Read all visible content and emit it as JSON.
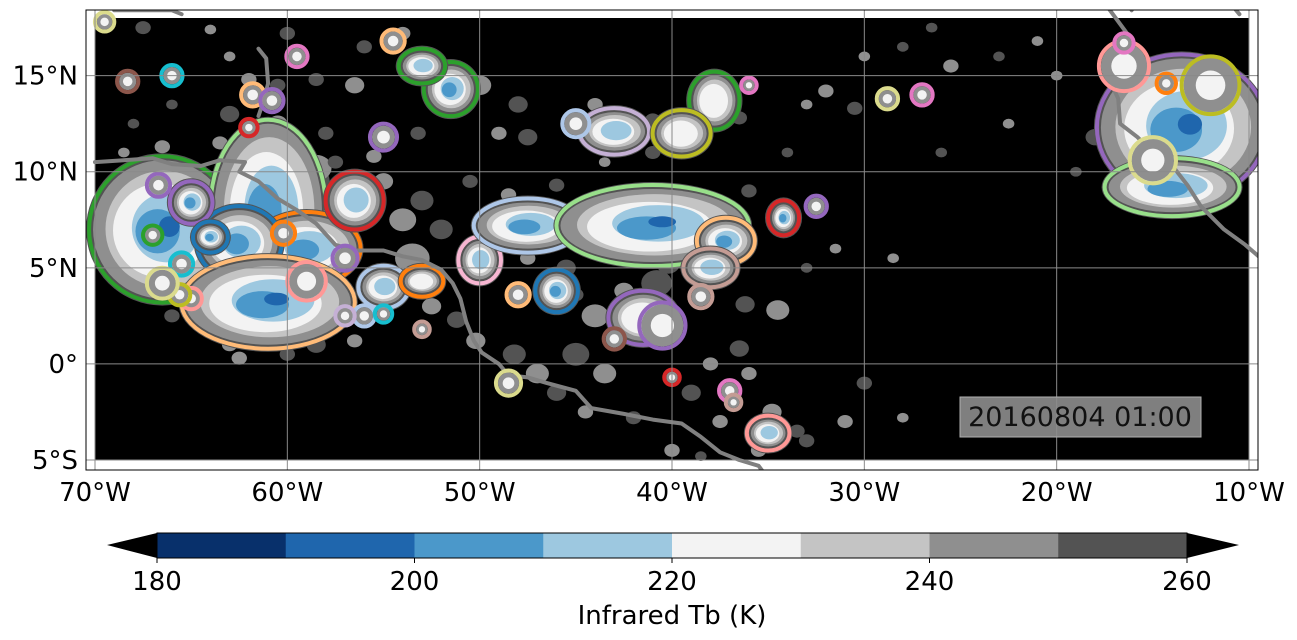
{
  "map": {
    "extent": {
      "lon_min": -70,
      "lon_max": -10,
      "lat_min": -5,
      "lat_max": 18
    },
    "x_ticks": [
      {
        "value": -70,
        "label": "70°W"
      },
      {
        "value": -60,
        "label": "60°W"
      },
      {
        "value": -50,
        "label": "50°W"
      },
      {
        "value": -40,
        "label": "40°W"
      },
      {
        "value": -30,
        "label": "30°W"
      },
      {
        "value": -20,
        "label": "20°W"
      },
      {
        "value": -10,
        "label": "10°W"
      }
    ],
    "y_ticks": [
      {
        "value": 15,
        "label": "15°N"
      },
      {
        "value": 10,
        "label": "10°N"
      },
      {
        "value": 5,
        "label": "5°N"
      },
      {
        "value": 0,
        "label": "0°"
      },
      {
        "value": -5,
        "label": "5°S"
      }
    ],
    "timestamp": "20160804 01:00",
    "background_color": "#000000",
    "coastline_color": "#808080",
    "grid": true
  },
  "colorbar": {
    "label": "Infrared Tb (K)",
    "ticks": [
      180,
      200,
      220,
      240,
      260
    ],
    "bins": [
      {
        "from": 180,
        "to": 190,
        "color": "#08306b"
      },
      {
        "from": 190,
        "to": 200,
        "color": "#1f66ad"
      },
      {
        "from": 200,
        "to": 210,
        "color": "#4b98ca"
      },
      {
        "from": 210,
        "to": 220,
        "color": "#9dc8e0"
      },
      {
        "from": 220,
        "to": 230,
        "color": "#f3f3f3"
      },
      {
        "from": 230,
        "to": 240,
        "color": "#c4c4c4"
      },
      {
        "from": 240,
        "to": 250,
        "color": "#8f8f8f"
      },
      {
        "from": 250,
        "to": 260,
        "color": "#535353"
      }
    ],
    "under_color": "#000000",
    "over_color": "#000000"
  },
  "tb_palette": {
    "t260": "#535353",
    "t240": "#8f8f8f",
    "t230": "#c4c4c4",
    "t220": "#f3f3f3",
    "t210": "#9dc8e0",
    "t200": "#4b98ca",
    "t190": "#1f66ad"
  },
  "track_colors": {
    "green": "#2ca02c",
    "lightgreen": "#98df8a",
    "blue": "#1f77b4",
    "lightblue": "#aec7e8",
    "orange": "#ff7f0e",
    "peach": "#ffbb78",
    "red": "#d62728",
    "salmon": "#ff9896",
    "purple": "#9467bd",
    "lavender": "#c5b0d5",
    "brown": "#8c564b",
    "rosybrown": "#c49c94",
    "pink": "#e377c2",
    "lightpink": "#f7b6d2",
    "olive": "#bcbd22",
    "khaki": "#dbdb8d",
    "cyan": "#17becf"
  },
  "systems": [
    {
      "lon": -66.5,
      "lat": 7.0,
      "rx": 3.6,
      "ry": 3.6,
      "core": 3,
      "outline": "green"
    },
    {
      "lon": -61.0,
      "lat": 8.0,
      "rx": 2.8,
      "ry": 4.5,
      "core": 2,
      "outline": "lightgreen"
    },
    {
      "lon": -59.0,
      "lat": 6.0,
      "rx": 2.6,
      "ry": 1.7,
      "core": 2,
      "outline": "orange"
    },
    {
      "lon": -62.5,
      "lat": 6.3,
      "rx": 2.0,
      "ry": 1.7,
      "core": 2,
      "outline": "blue"
    },
    {
      "lon": -61.0,
      "lat": 3.2,
      "rx": 4.3,
      "ry": 2.2,
      "core": 3,
      "outline": "peach"
    },
    {
      "lon": -55.0,
      "lat": 4.0,
      "rx": 1.1,
      "ry": 0.9,
      "core": 1,
      "outline": "lightblue"
    },
    {
      "lon": -53.0,
      "lat": 4.3,
      "rx": 0.9,
      "ry": 0.6,
      "core": 0,
      "outline": "orange"
    },
    {
      "lon": -56.5,
      "lat": 8.5,
      "rx": 1.3,
      "ry": 1.3,
      "core": 1,
      "outline": "red"
    },
    {
      "lon": -50.0,
      "lat": 5.4,
      "rx": 0.9,
      "ry": 1.0,
      "core": 1,
      "outline": "lightpink"
    },
    {
      "lon": -47.5,
      "lat": 7.2,
      "rx": 2.6,
      "ry": 1.2,
      "core": 2,
      "outline": "lightblue"
    },
    {
      "lon": -41.0,
      "lat": 7.2,
      "rx": 4.8,
      "ry": 1.9,
      "core": 3,
      "outline": "lightgreen"
    },
    {
      "lon": -37.2,
      "lat": 6.4,
      "rx": 1.3,
      "ry": 1.0,
      "core": 2,
      "outline": "peach"
    },
    {
      "lon": -41.5,
      "lat": 2.4,
      "rx": 1.6,
      "ry": 1.2,
      "core": 0,
      "outline": "purple"
    },
    {
      "lon": -46.0,
      "lat": 3.8,
      "rx": 0.9,
      "ry": 0.9,
      "core": 2,
      "outline": "blue"
    },
    {
      "lon": -51.5,
      "lat": 14.3,
      "rx": 1.2,
      "ry": 1.2,
      "core": 2,
      "outline": "green"
    },
    {
      "lon": -53.0,
      "lat": 15.5,
      "rx": 1.0,
      "ry": 0.7,
      "core": 1,
      "outline": "green"
    },
    {
      "lon": -37.8,
      "lat": 13.7,
      "rx": 1.1,
      "ry": 1.3,
      "core": 0,
      "outline": "green"
    },
    {
      "lon": -43.0,
      "lat": 12.1,
      "rx": 1.6,
      "ry": 1.0,
      "core": 1,
      "outline": "lavender"
    },
    {
      "lon": -39.5,
      "lat": 12.0,
      "rx": 1.3,
      "ry": 1.0,
      "core": 0,
      "outline": "olive"
    },
    {
      "lon": -13.5,
      "lat": 12.3,
      "rx": 4.2,
      "ry": 3.6,
      "core": 3,
      "outline": "purple"
    },
    {
      "lon": -14.0,
      "lat": 9.2,
      "rx": 3.3,
      "ry": 1.3,
      "core": 2,
      "outline": "lightgreen"
    },
    {
      "lon": -35.0,
      "lat": -3.6,
      "rx": 0.9,
      "ry": 0.7,
      "core": 1,
      "outline": "salmon"
    },
    {
      "lon": -65.0,
      "lat": 8.4,
      "rx": 0.9,
      "ry": 0.9,
      "core": 2,
      "outline": "purple"
    },
    {
      "lon": -64.0,
      "lat": 6.6,
      "rx": 0.7,
      "ry": 0.6,
      "core": 2,
      "outline": "blue"
    },
    {
      "lon": -34.2,
      "lat": 7.6,
      "rx": 0.6,
      "ry": 0.7,
      "core": 2,
      "outline": "red"
    },
    {
      "lon": -38.0,
      "lat": 5.0,
      "rx": 1.2,
      "ry": 0.8,
      "core": 1,
      "outline": "rosybrown"
    }
  ],
  "blobs": [
    {
      "lon": -61.8,
      "lat": 14.0,
      "r": 0.5,
      "color": "peach"
    },
    {
      "lon": -60.8,
      "lat": 13.7,
      "r": 0.5,
      "color": "purple"
    },
    {
      "lon": -62.0,
      "lat": 12.3,
      "r": 0.35,
      "color": "red"
    },
    {
      "lon": -59.5,
      "lat": 16.0,
      "r": 0.45,
      "color": "pink"
    },
    {
      "lon": -66.0,
      "lat": 15.0,
      "r": 0.45,
      "color": "cyan"
    },
    {
      "lon": -68.3,
      "lat": 14.7,
      "r": 0.45,
      "color": "brown"
    },
    {
      "lon": -54.5,
      "lat": 16.8,
      "r": 0.5,
      "color": "peach"
    },
    {
      "lon": -55.0,
      "lat": 11.8,
      "r": 0.6,
      "color": "purple"
    },
    {
      "lon": -45.0,
      "lat": 12.5,
      "r": 0.6,
      "color": "lightblue"
    },
    {
      "lon": -36.0,
      "lat": 14.5,
      "r": 0.3,
      "color": "pink"
    },
    {
      "lon": -27.0,
      "lat": 14.0,
      "r": 0.45,
      "color": "pink"
    },
    {
      "lon": -28.8,
      "lat": 13.8,
      "r": 0.45,
      "color": "khaki"
    },
    {
      "lon": -32.5,
      "lat": 8.2,
      "r": 0.45,
      "color": "purple"
    },
    {
      "lon": -57.0,
      "lat": 5.5,
      "r": 0.55,
      "color": "purple"
    },
    {
      "lon": -56.0,
      "lat": 2.5,
      "r": 0.45,
      "color": "lightblue"
    },
    {
      "lon": -55.0,
      "lat": 2.6,
      "r": 0.35,
      "color": "cyan"
    },
    {
      "lon": -48.0,
      "lat": 3.6,
      "r": 0.5,
      "color": "peach"
    },
    {
      "lon": -43.0,
      "lat": 1.3,
      "r": 0.45,
      "color": "brown"
    },
    {
      "lon": -40.0,
      "lat": -0.7,
      "r": 0.3,
      "color": "red"
    },
    {
      "lon": -37.0,
      "lat": -1.4,
      "r": 0.45,
      "color": "pink"
    },
    {
      "lon": -36.8,
      "lat": -2.0,
      "r": 0.3,
      "color": "rosybrown"
    },
    {
      "lon": -48.5,
      "lat": -1.0,
      "r": 0.55,
      "color": "khaki"
    },
    {
      "lon": -65.0,
      "lat": 3.4,
      "r": 0.45,
      "color": "salmon"
    },
    {
      "lon": -65.6,
      "lat": 3.6,
      "r": 0.45,
      "color": "olive"
    },
    {
      "lon": -65.5,
      "lat": 5.2,
      "r": 0.5,
      "color": "cyan"
    },
    {
      "lon": -67.0,
      "lat": 6.7,
      "r": 0.4,
      "color": "green"
    },
    {
      "lon": -66.7,
      "lat": 9.3,
      "r": 0.5,
      "color": "purple"
    },
    {
      "lon": -60.2,
      "lat": 6.8,
      "r": 0.5,
      "color": "orange"
    },
    {
      "lon": -59.0,
      "lat": 4.3,
      "r": 0.9,
      "color": "salmon"
    },
    {
      "lon": -57.0,
      "lat": 2.5,
      "r": 0.4,
      "color": "lavender"
    },
    {
      "lon": -53.0,
      "lat": 1.8,
      "r": 0.3,
      "color": "rosybrown"
    },
    {
      "lon": -38.5,
      "lat": 3.5,
      "r": 0.5,
      "color": "rosybrown"
    },
    {
      "lon": -40.5,
      "lat": 2.0,
      "r": 1.1,
      "color": "purple"
    },
    {
      "lon": -14.3,
      "lat": 14.6,
      "r": 0.4,
      "color": "orange"
    },
    {
      "lon": -16.5,
      "lat": 15.5,
      "r": 1.2,
      "color": "salmon"
    },
    {
      "lon": -12.0,
      "lat": 14.5,
      "r": 1.4,
      "color": "olive"
    },
    {
      "lon": -15.0,
      "lat": 10.6,
      "r": 1.1,
      "color": "khaki"
    },
    {
      "lon": -16.5,
      "lat": 16.7,
      "r": 0.4,
      "color": "pink"
    },
    {
      "lon": -66.5,
      "lat": 4.2,
      "r": 0.7,
      "color": "khaki"
    },
    {
      "lon": -69.5,
      "lat": 17.8,
      "r": 0.4,
      "color": "khaki"
    }
  ],
  "coastlines": [
    {
      "id": "south-america",
      "points": [
        [
          -70,
          10.5
        ],
        [
          -68.5,
          10.6
        ],
        [
          -67,
          10.7
        ],
        [
          -66,
          10.4
        ],
        [
          -64.5,
          10.3
        ],
        [
          -63.5,
          10.6
        ],
        [
          -62.2,
          10.5
        ],
        [
          -62.5,
          10.0
        ],
        [
          -61.5,
          9.5
        ],
        [
          -60.5,
          8.6
        ],
        [
          -59.5,
          8.0
        ],
        [
          -58.5,
          7.3
        ],
        [
          -57.5,
          6.2
        ],
        [
          -56.5,
          5.9
        ],
        [
          -55,
          5.9
        ],
        [
          -54,
          5.6
        ],
        [
          -53,
          5.4
        ],
        [
          -52,
          4.9
        ],
        [
          -51.4,
          4.2
        ],
        [
          -51,
          3.4
        ],
        [
          -50.7,
          2.2
        ],
        [
          -50.3,
          1.2
        ],
        [
          -49.9,
          0.6
        ],
        [
          -49,
          0
        ],
        [
          -48.5,
          -0.6
        ],
        [
          -47.5,
          -0.7
        ],
        [
          -46.5,
          -1.0
        ],
        [
          -45,
          -1.4
        ],
        [
          -44.2,
          -2.3
        ],
        [
          -42.5,
          -2.6
        ],
        [
          -41,
          -2.9
        ],
        [
          -39.5,
          -3.1
        ],
        [
          -38.5,
          -3.8
        ],
        [
          -37.5,
          -4.6
        ],
        [
          -36.5,
          -5.0
        ],
        [
          -35.5,
          -5.3
        ],
        [
          -35.2,
          -5.7
        ]
      ]
    },
    {
      "id": "africa",
      "points": [
        [
          -17.3,
          18.5
        ],
        [
          -16.2,
          17.0
        ],
        [
          -16.9,
          16.0
        ],
        [
          -17.3,
          14.9
        ],
        [
          -16.8,
          13.8
        ],
        [
          -16.7,
          12.5
        ],
        [
          -15.8,
          11.8
        ],
        [
          -15.0,
          11.0
        ],
        [
          -13.9,
          10.2
        ],
        [
          -13.2,
          9.3
        ],
        [
          -12.5,
          8.2
        ],
        [
          -11.3,
          7.0
        ],
        [
          -10.2,
          6.2
        ],
        [
          -9.5,
          5.6
        ]
      ]
    },
    {
      "id": "caribbean",
      "points": [
        [
          -61.5,
          16.4
        ],
        [
          -61.1,
          15.9
        ],
        [
          -61.0,
          14.6
        ],
        [
          -61.2,
          13.8
        ],
        [
          -61.5,
          12.9
        ]
      ]
    },
    {
      "id": "islands-top",
      "points": [
        [
          -69,
          18.4
        ],
        [
          -66,
          18.4
        ],
        [
          -65.5,
          18.2
        ]
      ]
    },
    {
      "id": "africa-north",
      "points": [
        [
          -16.1,
          18.4
        ],
        [
          -15.9,
          18.8
        ]
      ]
    },
    {
      "id": "island-east",
      "points": [
        [
          -10.5,
          18.2
        ],
        [
          -11,
          18.8
        ]
      ]
    }
  ],
  "clouds": [
    [
      -59,
      9.5,
      1.2
    ],
    [
      -58.5,
      10.2,
      0.8
    ],
    [
      -58,
      8.7,
      0.9
    ],
    [
      -54,
      7.5,
      0.7
    ],
    [
      -53,
      8.5,
      0.6
    ],
    [
      -55,
      9.5,
      0.5
    ],
    [
      -57.5,
      10.5,
      0.4
    ],
    [
      -53.5,
      5.5,
      0.9
    ],
    [
      -52,
      7,
      0.6
    ],
    [
      -52.5,
      3,
      0.5
    ],
    [
      -51.2,
      2.3,
      0.5
    ],
    [
      -50.2,
      1.2,
      0.5
    ],
    [
      -48.2,
      0.5,
      0.6
    ],
    [
      -47,
      -0.5,
      0.6
    ],
    [
      -45,
      0.5,
      0.7
    ],
    [
      -43.5,
      -0.5,
      0.6
    ],
    [
      -42.5,
      1.5,
      0.5
    ],
    [
      -44,
      2.5,
      0.7
    ],
    [
      -40.8,
      4.2,
      0.8
    ],
    [
      -42.5,
      3.8,
      0.5
    ],
    [
      -39,
      -1.5,
      0.5
    ],
    [
      -38,
      0,
      0.4
    ],
    [
      -36.5,
      0.8,
      0.5
    ],
    [
      -34.5,
      2.8,
      0.6
    ],
    [
      -36.2,
      3.1,
      0.5
    ],
    [
      -34.8,
      -2.5,
      0.5
    ],
    [
      -33.5,
      -3.5,
      0.4
    ],
    [
      -31,
      -3,
      0.4
    ],
    [
      -30,
      -1,
      0.4
    ],
    [
      -28,
      -2.8,
      0.3
    ],
    [
      -40.2,
      5.2,
      0.6
    ],
    [
      -38.5,
      8.5,
      0.5
    ],
    [
      -36,
      9,
      0.4
    ],
    [
      -43,
      6,
      0.6
    ],
    [
      -45,
      3.6,
      0.4
    ],
    [
      -37,
      13.5,
      0.5
    ],
    [
      -36.5,
      12.8,
      0.4
    ],
    [
      -33,
      13.5,
      0.3
    ],
    [
      -30.5,
      13.3,
      0.4
    ],
    [
      -38,
      12.5,
      0.5
    ],
    [
      -41,
      12.7,
      0.4
    ],
    [
      -44,
      13.5,
      0.4
    ],
    [
      -48,
      13.5,
      0.5
    ],
    [
      -50,
      14.5,
      0.6
    ],
    [
      -52,
      15.5,
      0.5
    ],
    [
      -49,
      12,
      0.4
    ],
    [
      -47.5,
      11.8,
      0.5
    ],
    [
      -56.5,
      14.5,
      0.5
    ],
    [
      -58.5,
      14.8,
      0.4
    ],
    [
      -60.5,
      12.5,
      0.5
    ],
    [
      -63,
      13,
      0.5
    ],
    [
      -63.5,
      11.5,
      0.4
    ],
    [
      -58,
      12,
      0.4
    ],
    [
      -66.5,
      11.3,
      0.4
    ],
    [
      -68,
      12.5,
      0.3
    ],
    [
      -67.5,
      9.8,
      0.5
    ],
    [
      -60.5,
      14.5,
      0.4
    ],
    [
      -62,
      14.8,
      0.4
    ],
    [
      -56,
      16.5,
      0.4
    ],
    [
      -54,
      17.2,
      0.4
    ],
    [
      -60,
      17.2,
      0.4
    ],
    [
      -64,
      17.4,
      0.3
    ],
    [
      -67.5,
      17.5,
      0.4
    ],
    [
      -63,
      16,
      0.3
    ],
    [
      -53.2,
      12,
      0.4
    ],
    [
      -55.5,
      10.8,
      0.4
    ],
    [
      -50.5,
      9.5,
      0.4
    ],
    [
      -48.5,
      8.8,
      0.4
    ],
    [
      -46,
      9.3,
      0.4
    ],
    [
      -32,
      14.2,
      0.4
    ],
    [
      -28,
      16.5,
      0.3
    ],
    [
      -25.5,
      15.5,
      0.4
    ],
    [
      -23,
      16,
      0.3
    ],
    [
      -20,
      15,
      0.3
    ],
    [
      -18,
      11.8,
      0.5
    ],
    [
      -17,
      9,
      0.4
    ],
    [
      -19,
      10,
      0.3
    ],
    [
      -35.5,
      -4.5,
      0.4
    ],
    [
      -33,
      -4,
      0.4
    ],
    [
      -37.5,
      -3,
      0.4
    ],
    [
      -66,
      13.5,
      0.3
    ],
    [
      -68.5,
      11,
      0.3
    ],
    [
      -64.5,
      2.5,
      0.4
    ],
    [
      -63,
      1,
      0.4
    ],
    [
      -58.5,
      1,
      0.5
    ],
    [
      -56.5,
      1.2,
      0.4
    ],
    [
      -60,
      0.5,
      0.4
    ],
    [
      -62.5,
      0.3,
      0.4
    ],
    [
      -46,
      -1.5,
      0.5
    ],
    [
      -44.5,
      -2.5,
      0.4
    ],
    [
      -42,
      -2.8,
      0.4
    ],
    [
      -40,
      -4.5,
      0.4
    ],
    [
      -38.5,
      -4.8,
      0.3
    ],
    [
      -36,
      -0.5,
      0.4
    ],
    [
      -66,
      2.5,
      0.4
    ],
    [
      -67.5,
      3.5,
      0.3
    ],
    [
      -60,
      4.5,
      0.6
    ],
    [
      -57.5,
      4,
      0.5
    ],
    [
      -41,
      11,
      0.4
    ],
    [
      -43.5,
      10.5,
      0.3
    ],
    [
      -34,
      11,
      0.3
    ],
    [
      -22.5,
      12.5,
      0.3
    ],
    [
      -26,
      11,
      0.3
    ],
    [
      -21,
      16.8,
      0.3
    ],
    [
      -26.5,
      17.5,
      0.3
    ],
    [
      -30,
      16,
      0.3
    ],
    [
      -45.5,
      5,
      0.5
    ],
    [
      -47.5,
      5.5,
      0.4
    ],
    [
      -44.5,
      6.3,
      0.3
    ],
    [
      -31.5,
      6,
      0.3
    ],
    [
      -33,
      5,
      0.3
    ],
    [
      -28.5,
      5.5,
      0.3
    ]
  ]
}
